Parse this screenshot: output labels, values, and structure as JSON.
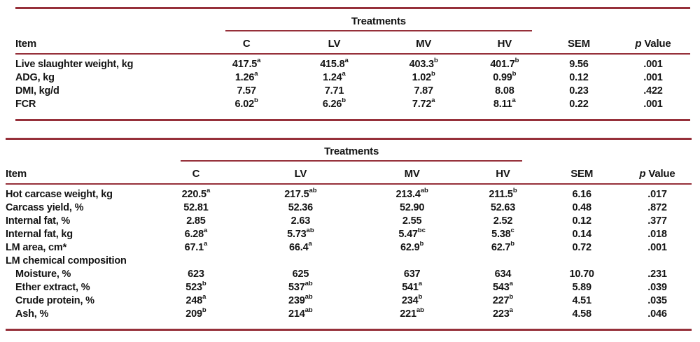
{
  "colors": {
    "rule": "#96303a",
    "text": "#141414"
  },
  "tables": [
    {
      "treatments_label": "Treatments",
      "columns": {
        "item": "Item",
        "c": "C",
        "lv": "LV",
        "mv": "MV",
        "hv": "HV",
        "sem": "SEM",
        "p_italic": "p",
        "p_rest": "Value"
      },
      "rows": [
        {
          "item": "Live slaughter weight, kg",
          "indent": 0,
          "cells": [
            "417.5^a",
            "415.8^a",
            "403.3^b",
            "401.7^b",
            "9.56",
            ".001"
          ]
        },
        {
          "item": "ADG, kg",
          "indent": 0,
          "cells": [
            "1.26^a",
            "1.24^a",
            "1.02^b",
            "0.99^b",
            "0.12",
            ".001"
          ]
        },
        {
          "item": "DMI, kg/d",
          "indent": 0,
          "cells": [
            "7.57",
            "7.71",
            "7.87",
            "8.08",
            "0.23",
            ".422"
          ]
        },
        {
          "item": "FCR",
          "indent": 0,
          "cells": [
            "6.02^b",
            "6.26^b",
            "7.72^a",
            "8.11^a",
            "0.22",
            ".001"
          ]
        }
      ]
    },
    {
      "treatments_label": "Treatments",
      "columns": {
        "item": "Item",
        "c": "C",
        "lv": "LV",
        "mv": "MV",
        "hv": "HV",
        "sem": "SEM",
        "p_italic": "p",
        "p_rest": "Value"
      },
      "rows": [
        {
          "item": "Hot carcase weight, kg",
          "indent": 0,
          "cells": [
            "220.5^a",
            "217.5^ab",
            "213.4^ab",
            "211.5^b",
            "6.16",
            ".017"
          ]
        },
        {
          "item": "Carcass yield, %",
          "indent": 0,
          "cells": [
            "52.81",
            "52.36",
            "52.90",
            "52.63",
            "0.48",
            ".872"
          ]
        },
        {
          "item": "Internal fat, %",
          "indent": 0,
          "cells": [
            "2.85",
            "2.63",
            "2.55",
            "2.52",
            "0.12",
            ".377"
          ]
        },
        {
          "item": "Internal fat, kg",
          "indent": 0,
          "cells": [
            "6.28^a",
            "5.73^ab",
            "5.47^bc",
            "5.38^c",
            "0.14",
            ".018"
          ]
        },
        {
          "item": "LM area, cm*",
          "indent": 0,
          "cells": [
            "67.1^a",
            "66.4^a",
            "62.9^b",
            "62.7^b",
            "0.72",
            ".001"
          ]
        },
        {
          "item": "LM chemical composition",
          "indent": 0,
          "cells": [
            "",
            "",
            "",
            "",
            "",
            ""
          ]
        },
        {
          "item": "Moisture, %",
          "indent": 1,
          "cells": [
            "623",
            "625",
            "637",
            "634",
            "10.70",
            ".231"
          ]
        },
        {
          "item": "Ether extract, %",
          "indent": 1,
          "cells": [
            "523^b",
            "537^ab",
            "541^a",
            "543^a",
            "5.89",
            ".039"
          ]
        },
        {
          "item": "Crude protein, %",
          "indent": 1,
          "cells": [
            "248^a",
            "239^ab",
            "234^b",
            "227^b",
            "4.51",
            ".035"
          ]
        },
        {
          "item": "Ash, %",
          "indent": 1,
          "cells": [
            "209^b",
            "214^ab",
            "221^ab",
            "223^a",
            "4.58",
            ".046"
          ]
        }
      ]
    }
  ]
}
